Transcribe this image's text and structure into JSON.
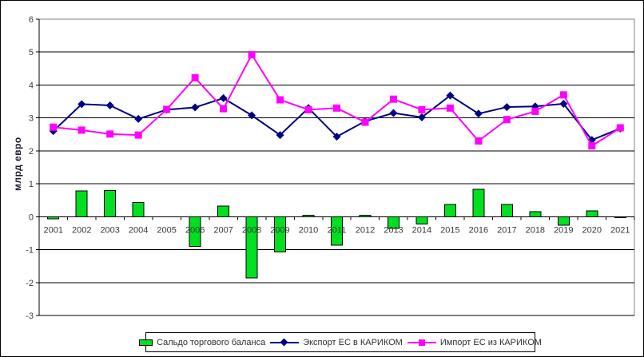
{
  "chart_data": {
    "type": "combo",
    "title": "",
    "xlabel": "",
    "ylabel": "млрд евро",
    "ylim": [
      -3,
      6
    ],
    "yticks": [
      6,
      5,
      4,
      3,
      2,
      1,
      0,
      -1,
      -2,
      -3
    ],
    "grid": "horizontal",
    "legend_position": "bottom",
    "categories": [
      2001,
      2002,
      2003,
      2004,
      2005,
      2006,
      2007,
      2008,
      2009,
      2010,
      2011,
      2012,
      2013,
      2014,
      2015,
      2016,
      2017,
      2018,
      2019,
      2020,
      2021
    ],
    "series": [
      {
        "name": "Сальдо торгового баланса",
        "type": "bar",
        "color": "#00DF20",
        "values": [
          -0.07,
          0.78,
          0.8,
          0.43,
          0.0,
          -0.9,
          0.32,
          -1.86,
          -1.07,
          0.05,
          -0.87,
          0.05,
          -0.35,
          -0.22,
          0.37,
          0.83,
          0.37,
          0.15,
          -0.26,
          0.18,
          -0.02
        ]
      },
      {
        "name": "Экспорт ЕС в КАРИКОМ",
        "type": "line",
        "marker": "diamond",
        "color": "#000080",
        "values": [
          2.6,
          3.42,
          3.38,
          2.97,
          3.25,
          3.32,
          3.6,
          3.08,
          2.48,
          3.3,
          2.43,
          2.9,
          3.15,
          3.02,
          3.68,
          3.13,
          3.33,
          3.35,
          3.43,
          2.33,
          2.68
        ]
      },
      {
        "name": "Импорт ЕС из КАРИКОМ",
        "type": "line",
        "marker": "square",
        "color": "#FF00FF",
        "values": [
          2.72,
          2.63,
          2.51,
          2.48,
          3.26,
          4.22,
          3.28,
          4.92,
          3.55,
          3.25,
          3.3,
          2.87,
          3.57,
          3.25,
          3.3,
          2.3,
          2.95,
          3.2,
          3.7,
          2.15,
          2.7
        ]
      }
    ]
  },
  "colors": {
    "grid_line": "#000000",
    "plot_border": "#808080",
    "axis_text": "#3a3a3a",
    "background": "#ffffff"
  }
}
